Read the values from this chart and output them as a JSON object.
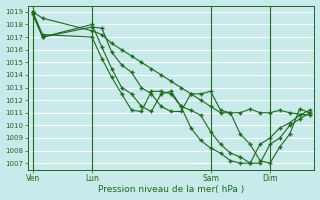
{
  "background_color": "#c8eaea",
  "grid_color": "#b8d8d8",
  "line_color": "#1a6b1a",
  "marker_color": "#1a6b1a",
  "xlabel": "Pression niveau de la mer( hPa )",
  "ylim": [
    1006.5,
    1019.5
  ],
  "yticks": [
    1007,
    1008,
    1009,
    1010,
    1011,
    1012,
    1013,
    1014,
    1015,
    1016,
    1017,
    1018,
    1019
  ],
  "xtick_labels": [
    "Ven",
    "Lun",
    "Sam",
    "Dim"
  ],
  "xtick_pos": [
    0,
    12,
    36,
    48
  ],
  "xlim": [
    -1,
    57
  ],
  "series": [
    {
      "x": [
        0,
        2,
        12,
        14,
        16,
        18,
        20,
        22,
        24,
        26,
        28,
        30,
        32,
        34,
        36,
        38,
        40,
        42,
        44,
        46,
        48,
        50,
        52,
        56
      ],
      "y": [
        1019.0,
        1018.5,
        1017.5,
        1017.2,
        1016.5,
        1016.0,
        1015.5,
        1015.0,
        1014.5,
        1014.0,
        1013.5,
        1013.0,
        1012.5,
        1012.0,
        1011.5,
        1011.0,
        1011.0,
        1011.0,
        1011.3,
        1011.0,
        1011.0,
        1011.2,
        1011.0,
        1010.8
      ]
    },
    {
      "x": [
        0,
        2,
        12,
        14,
        16,
        18,
        20,
        22,
        24,
        26,
        28,
        30,
        32,
        34,
        36,
        38,
        40,
        42,
        44,
        46,
        48,
        50,
        52,
        54,
        56
      ],
      "y": [
        1018.8,
        1017.0,
        1017.8,
        1017.7,
        1015.8,
        1014.8,
        1014.2,
        1013.0,
        1012.5,
        1011.5,
        1011.1,
        1011.1,
        1012.5,
        1012.5,
        1012.7,
        1011.2,
        1011.0,
        1009.3,
        1008.5,
        1007.2,
        1007.0,
        1008.3,
        1009.3,
        1011.3,
        1011.0
      ]
    },
    {
      "x": [
        0,
        2,
        12,
        14,
        16,
        18,
        20,
        22,
        24,
        26,
        28,
        30,
        32,
        34,
        36,
        38,
        40,
        42,
        44,
        46,
        48,
        50,
        52,
        54,
        56
      ],
      "y": [
        1019.0,
        1017.0,
        1018.0,
        1016.2,
        1014.5,
        1013.0,
        1012.5,
        1011.5,
        1011.1,
        1012.5,
        1012.7,
        1011.5,
        1011.2,
        1010.8,
        1009.5,
        1008.5,
        1007.8,
        1007.5,
        1007.0,
        1007.0,
        1008.5,
        1009.0,
        1010.0,
        1010.5,
        1011.0
      ]
    },
    {
      "x": [
        0,
        2,
        12,
        14,
        16,
        18,
        20,
        22,
        24,
        26,
        28,
        30,
        32,
        34,
        36,
        38,
        40,
        42,
        44,
        46,
        48,
        50,
        52,
        54,
        56
      ],
      "y": [
        1019.0,
        1017.2,
        1017.0,
        1015.3,
        1013.8,
        1012.5,
        1011.2,
        1011.1,
        1012.7,
        1012.7,
        1012.5,
        1011.5,
        1009.8,
        1008.8,
        1008.2,
        1007.8,
        1007.2,
        1007.0,
        1007.0,
        1008.5,
        1009.0,
        1009.8,
        1010.2,
        1010.8,
        1011.2
      ]
    }
  ]
}
